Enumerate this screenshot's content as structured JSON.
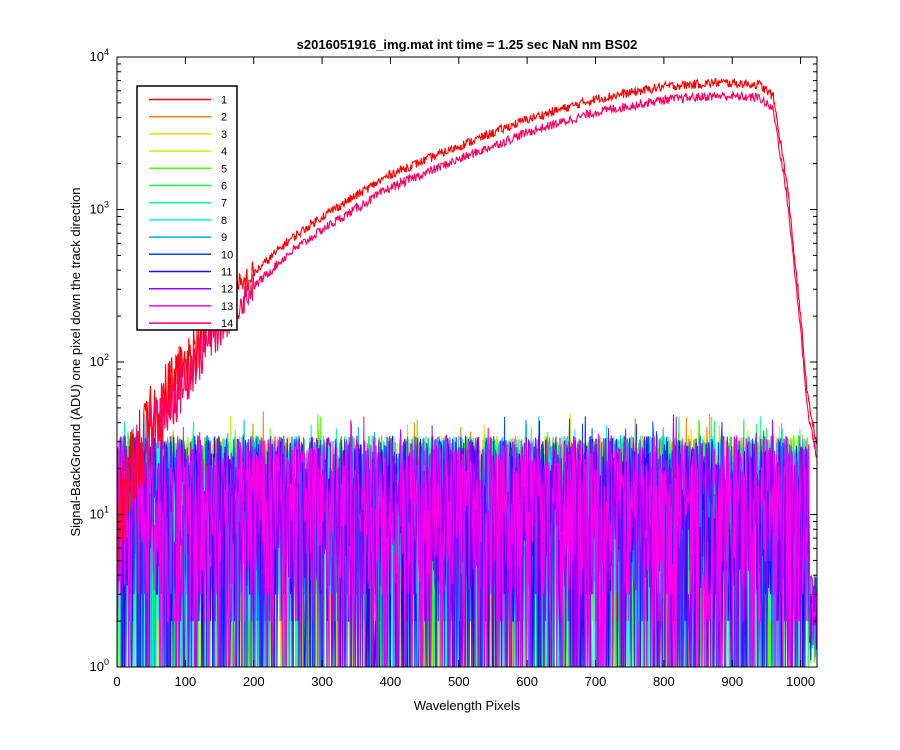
{
  "chart_data": {
    "type": "line",
    "title": "s2016051916_img.mat int time = 1.25 sec  NaN nm BS02",
    "xlabel": "Wavelength Pixels",
    "ylabel": "Signal-BackGround (ADU) one pixel down the track direction",
    "xlim": [
      0,
      1024
    ],
    "ylim": [
      1,
      10000
    ],
    "yscale": "log",
    "grid": false,
    "legend_position": "top-left",
    "x_ticks": [
      0,
      100,
      200,
      300,
      400,
      500,
      600,
      700,
      800,
      900,
      1000
    ],
    "y_ticks": [
      {
        "value": 1,
        "base": "10",
        "exp": "0"
      },
      {
        "value": 10,
        "base": "10",
        "exp": "1"
      },
      {
        "value": 100,
        "base": "10",
        "exp": "2"
      },
      {
        "value": 1000,
        "base": "10",
        "exp": "3"
      },
      {
        "value": 10000,
        "base": "10",
        "exp": "4"
      }
    ],
    "series": [
      {
        "name": "1",
        "color": "#ff0000",
        "kind": "signal",
        "scale": 1.0,
        "points": [
          [
            0,
            8
          ],
          [
            20,
            20
          ],
          [
            50,
            40
          ],
          [
            80,
            70
          ],
          [
            100,
            100
          ],
          [
            150,
            210
          ],
          [
            200,
            380
          ],
          [
            250,
            620
          ],
          [
            300,
            900
          ],
          [
            400,
            1700
          ],
          [
            500,
            2600
          ],
          [
            600,
            3900
          ],
          [
            700,
            5300
          ],
          [
            800,
            6400
          ],
          [
            880,
            6800
          ],
          [
            940,
            6600
          ],
          [
            960,
            5500
          ],
          [
            980,
            1500
          ],
          [
            1000,
            200
          ],
          [
            1010,
            60
          ],
          [
            1023,
            30
          ]
        ]
      },
      {
        "name": "2",
        "color": "#ff7f00",
        "kind": "noise"
      },
      {
        "name": "3",
        "color": "#ffd500",
        "kind": "noise"
      },
      {
        "name": "4",
        "color": "#b7ff00",
        "kind": "noise"
      },
      {
        "name": "5",
        "color": "#4dff00",
        "kind": "noise"
      },
      {
        "name": "6",
        "color": "#00ff3a",
        "kind": "noise"
      },
      {
        "name": "7",
        "color": "#00ff9c",
        "kind": "noise"
      },
      {
        "name": "8",
        "color": "#00fff0",
        "kind": "noise"
      },
      {
        "name": "9",
        "color": "#00b0ff",
        "kind": "noise"
      },
      {
        "name": "10",
        "color": "#0048ff",
        "kind": "noise"
      },
      {
        "name": "11",
        "color": "#2a00ff",
        "kind": "noise"
      },
      {
        "name": "12",
        "color": "#9c00ff",
        "kind": "noise"
      },
      {
        "name": "13",
        "color": "#ff00ea",
        "kind": "noise"
      },
      {
        "name": "14",
        "color": "#ff0060",
        "kind": "signal",
        "scale": 0.82,
        "points": [
          [
            0,
            8
          ],
          [
            20,
            20
          ],
          [
            50,
            40
          ],
          [
            80,
            70
          ],
          [
            100,
            100
          ],
          [
            150,
            210
          ],
          [
            200,
            380
          ],
          [
            250,
            620
          ],
          [
            300,
            900
          ],
          [
            400,
            1700
          ],
          [
            500,
            2600
          ],
          [
            600,
            3900
          ],
          [
            700,
            5300
          ],
          [
            800,
            6400
          ],
          [
            880,
            6800
          ],
          [
            940,
            6600
          ],
          [
            960,
            5500
          ],
          [
            980,
            1500
          ],
          [
            1000,
            200
          ],
          [
            1010,
            60
          ],
          [
            1023,
            30
          ]
        ]
      }
    ]
  }
}
